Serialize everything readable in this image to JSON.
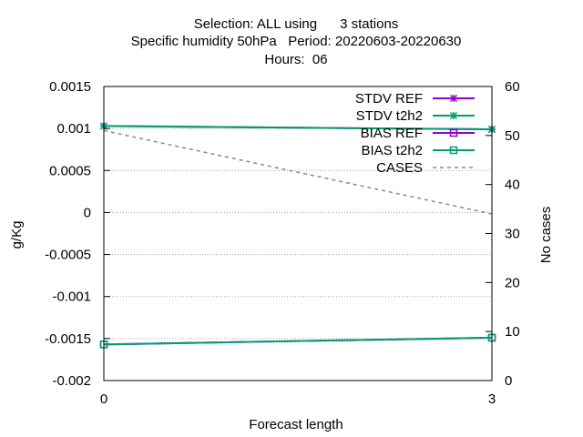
{
  "title_lines": [
    "Selection: ALL using      3 stations",
    "Specific humidity 50hPa   Period: 20220603-20220630",
    "Hours:  06"
  ],
  "chart_data": {
    "type": "line",
    "xlabel": "Forecast length",
    "ylabel": "g/Kg",
    "y2label": "No cases",
    "xlim": [
      0,
      3
    ],
    "ylim": [
      -0.002,
      0.0015
    ],
    "y2lim": [
      0,
      60
    ],
    "x_ticks": [
      "0",
      "3"
    ],
    "y_ticks": [
      "0.0015",
      "0.001",
      "0.0005",
      "0",
      "-0.0005",
      "-0.001",
      "-0.0015",
      "-0.002"
    ],
    "y2_ticks": [
      "60",
      "50",
      "40",
      "30",
      "20",
      "10",
      "0"
    ],
    "grid": true,
    "legend_position": "top-right",
    "x": [
      0,
      3
    ],
    "series": [
      {
        "name": "STDV REF",
        "axis": "y1",
        "color": "#9400d3",
        "marker": "star",
        "style": "solid",
        "values": [
          0.00103,
          0.00099
        ]
      },
      {
        "name": "STDV t2h2",
        "axis": "y1",
        "color": "#009e73",
        "marker": "star",
        "style": "solid",
        "values": [
          0.00103,
          0.00099
        ]
      },
      {
        "name": "BIAS REF",
        "axis": "y1",
        "color": "#9400d3",
        "marker": "square",
        "style": "solid",
        "values": [
          -0.00157,
          -0.00149
        ]
      },
      {
        "name": "BIAS t2h2",
        "axis": "y1",
        "color": "#009e73",
        "marker": "square",
        "style": "solid",
        "values": [
          -0.00157,
          -0.00149
        ]
      },
      {
        "name": "CASES",
        "axis": "y2",
        "color": "#888888",
        "marker": "none",
        "style": "dashed",
        "values": [
          51,
          34
        ]
      }
    ]
  }
}
